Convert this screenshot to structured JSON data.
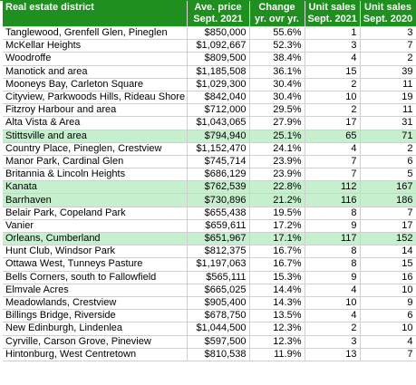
{
  "headers": {
    "district": "Real estate district",
    "price_line1": "Ave. price",
    "price_line2": "Sept. 2021",
    "change_line1": "Change",
    "change_line2": "yr. ovr yr.",
    "sales2021_line1": "Unit sales",
    "sales2021_line2": "Sept. 2021",
    "sales2020_line1": "Unit sales",
    "sales2020_line2": "Sept. 2020"
  },
  "rows": [
    {
      "district": "Tanglewood, Grenfell Glen, Pineglen",
      "price": "$850,000",
      "change": "55.6%",
      "sales_2021": "1",
      "sales_2020": "3",
      "highlight": false
    },
    {
      "district": "McKellar Heights",
      "price": "$1,092,667",
      "change": "52.3%",
      "sales_2021": "3",
      "sales_2020": "7",
      "highlight": false
    },
    {
      "district": "Woodroffe",
      "price": "$809,500",
      "change": "38.4%",
      "sales_2021": "4",
      "sales_2020": "2",
      "highlight": false
    },
    {
      "district": "Manotick and area",
      "price": "$1,185,508",
      "change": "36.1%",
      "sales_2021": "15",
      "sales_2020": "39",
      "highlight": false
    },
    {
      "district": "Mooneys Bay, Carleton Square",
      "price": "$1,029,300",
      "change": "30.4%",
      "sales_2021": "2",
      "sales_2020": "11",
      "highlight": false
    },
    {
      "district": "Cityview, Parkwoods Hills, Rideau Shore",
      "price": "$842,040",
      "change": "30.4%",
      "sales_2021": "10",
      "sales_2020": "19",
      "highlight": false
    },
    {
      "district": "Fitzroy Harbour and area",
      "price": "$712,000",
      "change": "29.5%",
      "sales_2021": "2",
      "sales_2020": "11",
      "highlight": false
    },
    {
      "district": "Alta Vista & Area",
      "price": "$1,043,065",
      "change": "27.9%",
      "sales_2021": "17",
      "sales_2020": "31",
      "highlight": false
    },
    {
      "district": "Stittsville and area",
      "price": "$794,940",
      "change": "25.1%",
      "sales_2021": "65",
      "sales_2020": "71",
      "highlight": true
    },
    {
      "district": "Country Place, Pineglen, Crestview",
      "price": "$1,152,470",
      "change": "24.1%",
      "sales_2021": "4",
      "sales_2020": "2",
      "highlight": false
    },
    {
      "district": "Manor Park, Cardinal Glen",
      "price": "$745,714",
      "change": "23.9%",
      "sales_2021": "7",
      "sales_2020": "6",
      "highlight": false
    },
    {
      "district": "Britannia & Lincoln Heights",
      "price": "$686,129",
      "change": "23.9%",
      "sales_2021": "7",
      "sales_2020": "5",
      "highlight": false
    },
    {
      "district": "Kanata",
      "price": "$762,539",
      "change": "22.8%",
      "sales_2021": "112",
      "sales_2020": "167",
      "highlight": true
    },
    {
      "district": "Barrhaven",
      "price": "$730,896",
      "change": "21.2%",
      "sales_2021": "116",
      "sales_2020": "186",
      "highlight": true
    },
    {
      "district": "Belair Park, Copeland Park",
      "price": "$655,438",
      "change": "19.5%",
      "sales_2021": "8",
      "sales_2020": "7",
      "highlight": false
    },
    {
      "district": "Vanier",
      "price": "$659,611",
      "change": "17.2%",
      "sales_2021": "9",
      "sales_2020": "17",
      "highlight": false
    },
    {
      "district": "Orleans, Cumberland",
      "price": "$651,967",
      "change": "17.1%",
      "sales_2021": "117",
      "sales_2020": "152",
      "highlight": true
    },
    {
      "district": "Hunt Club, Windsor Park",
      "price": "$812,375",
      "change": "16.7%",
      "sales_2021": "8",
      "sales_2020": "14",
      "highlight": false
    },
    {
      "district": "Ottawa West, Tunneys Pasture",
      "price": "$1,197,063",
      "change": "16.7%",
      "sales_2021": "8",
      "sales_2020": "15",
      "highlight": false
    },
    {
      "district": "Bells Corners, south to Fallowfield",
      "price": "$565,111",
      "change": "15.3%",
      "sales_2021": "9",
      "sales_2020": "16",
      "highlight": false
    },
    {
      "district": "Elmvale Acres",
      "price": "$665,025",
      "change": "14.4%",
      "sales_2021": "4",
      "sales_2020": "10",
      "highlight": false
    },
    {
      "district": "Meadowlands, Crestview",
      "price": "$905,400",
      "change": "14.3%",
      "sales_2021": "10",
      "sales_2020": "9",
      "highlight": false
    },
    {
      "district": "Billings Bridge, Riverside",
      "price": "$678,750",
      "change": "13.5%",
      "sales_2021": "4",
      "sales_2020": "6",
      "highlight": false
    },
    {
      "district": "New Edinburgh, Lindenlea",
      "price": "$1,044,500",
      "change": "12.3%",
      "sales_2021": "2",
      "sales_2020": "10",
      "highlight": false
    },
    {
      "district": "Cyrville, Carson Grove, Pineview",
      "price": "$597,500",
      "change": "12.3%",
      "sales_2021": "3",
      "sales_2020": "4",
      "highlight": false
    },
    {
      "district": "Hintonburg, West Centretown",
      "price": "$810,538",
      "change": "11.9%",
      "sales_2021": "13",
      "sales_2020": "7",
      "highlight": false
    }
  ],
  "colors": {
    "header_bg": "#1f8f1f",
    "header_text": "#ffffff",
    "highlight_bg": "#c6efce"
  }
}
